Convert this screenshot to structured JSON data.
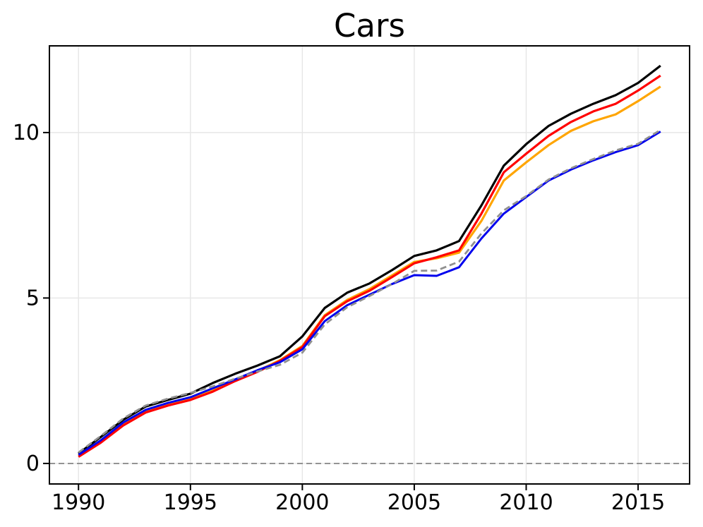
{
  "title": {
    "text": "Cars"
  },
  "axes": {
    "x_tick_labels": [
      "1990",
      "1995",
      "2000",
      "2005",
      "2010",
      "2015"
    ],
    "y_tick_labels": [
      "0",
      "5",
      "10"
    ]
  },
  "colors": {
    "background": "#ffffff",
    "grid": "#e6e6e6",
    "spine": "#000000",
    "zero_line": "#8c8c8c",
    "tick_label": "#000000"
  },
  "chart_data": {
    "type": "line",
    "title": "Cars",
    "xlabel": "",
    "ylabel": "",
    "x": [
      1990,
      1991,
      1992,
      1993,
      1994,
      1995,
      1996,
      1997,
      1998,
      1999,
      2000,
      2001,
      2002,
      2003,
      2004,
      2005,
      2006,
      2007,
      2008,
      2009,
      2010,
      2011,
      2012,
      2013,
      2014,
      2015,
      2016
    ],
    "series": [
      {
        "name": "orange-line",
        "color": "#ffa500",
        "style": "solid",
        "width": 3.2,
        "values": [
          0.23,
          0.66,
          1.18,
          1.57,
          1.78,
          1.95,
          2.2,
          2.52,
          2.8,
          3.12,
          3.55,
          4.48,
          4.94,
          5.27,
          5.68,
          6.09,
          6.2,
          6.37,
          7.33,
          8.55,
          9.1,
          9.62,
          10.05,
          10.34,
          10.55,
          10.95,
          11.39
        ]
      },
      {
        "name": "red-line",
        "color": "#ff0000",
        "style": "solid",
        "width": 3.2,
        "values": [
          0.2,
          0.63,
          1.15,
          1.54,
          1.75,
          1.92,
          2.17,
          2.49,
          2.77,
          3.1,
          3.52,
          4.45,
          4.9,
          5.22,
          5.63,
          6.05,
          6.23,
          6.44,
          7.55,
          8.8,
          9.36,
          9.9,
          10.32,
          10.64,
          10.87,
          11.27,
          11.72
        ]
      },
      {
        "name": "black-line",
        "color": "#000000",
        "style": "solid",
        "width": 3.2,
        "values": [
          0.3,
          0.8,
          1.32,
          1.72,
          1.92,
          2.11,
          2.43,
          2.71,
          2.96,
          3.24,
          3.84,
          4.7,
          5.16,
          5.44,
          5.84,
          6.27,
          6.44,
          6.72,
          7.8,
          9.0,
          9.65,
          10.2,
          10.57,
          10.87,
          11.13,
          11.5,
          12.02
        ]
      },
      {
        "name": "blue-line",
        "color": "#0000ee",
        "style": "solid",
        "width": 3.0,
        "values": [
          0.26,
          0.7,
          1.24,
          1.62,
          1.83,
          2.0,
          2.27,
          2.54,
          2.82,
          3.06,
          3.45,
          4.3,
          4.78,
          5.1,
          5.42,
          5.69,
          5.67,
          5.93,
          6.8,
          7.55,
          8.05,
          8.55,
          8.88,
          9.16,
          9.41,
          9.62,
          10.03
        ]
      },
      {
        "name": "gray-dashed-line",
        "color": "#909090",
        "style": "dashed",
        "width": 2.8,
        "values": [
          0.33,
          0.83,
          1.36,
          1.75,
          1.96,
          2.13,
          2.33,
          2.56,
          2.78,
          2.98,
          3.35,
          4.2,
          4.72,
          5.06,
          5.42,
          5.82,
          5.83,
          6.1,
          6.95,
          7.65,
          8.08,
          8.58,
          8.92,
          9.2,
          9.46,
          9.66,
          10.08
        ]
      }
    ],
    "xticks": [
      1990,
      1995,
      2000,
      2005,
      2010,
      2015
    ],
    "yticks": [
      0,
      5,
      10
    ],
    "xlim": [
      1988.7,
      2017.3
    ],
    "ylim": [
      -0.62,
      12.62
    ],
    "grid": true,
    "zero_line_y": 0,
    "legend_position": "none"
  }
}
